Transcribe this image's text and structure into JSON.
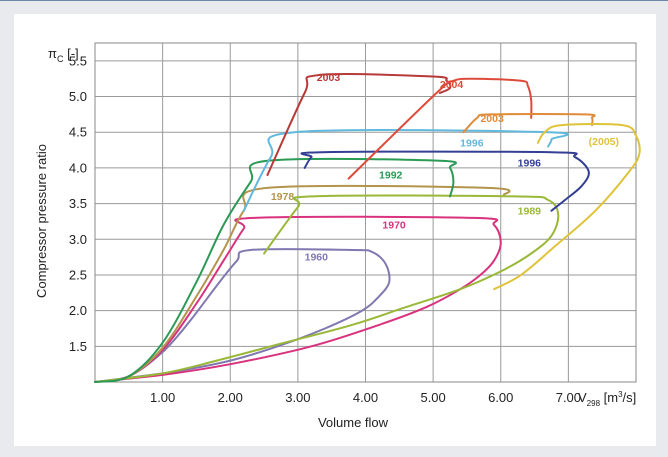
{
  "chart_data": {
    "type": "line",
    "xlabel": "Volume flow",
    "ylabel": "Compressor pressure ratio",
    "y_axis_symbol": {
      "main": "π",
      "sub": "C",
      "unit": " [-]"
    },
    "x_axis_symbol": {
      "main": "V",
      "sub": "298",
      "unit_pre": " [m",
      "sup": "3",
      "unit_post": "/s]"
    },
    "xlim": [
      0.0,
      8.0
    ],
    "ylim": [
      1.0,
      5.75
    ],
    "xticks": [
      1.0,
      2.0,
      3.0,
      4.0,
      5.0,
      6.0,
      7.0
    ],
    "xtick_labels": [
      "1.00",
      "2.00",
      "3.00",
      "4.00",
      "5.00",
      "6.00",
      "7.00"
    ],
    "yticks": [
      1.5,
      2.0,
      2.5,
      3.0,
      3.5,
      4.0,
      4.5,
      5.0,
      5.5
    ],
    "ytick_labels": [
      "1.5",
      "2.0",
      "2.5",
      "3.0",
      "3.5",
      "4.0",
      "4.5",
      "5.0",
      "5.5"
    ],
    "grid": true,
    "series": [
      {
        "name": "1960",
        "color": "#8079b0",
        "label_pos": [
          3.1,
          2.7
        ],
        "x": [
          0.0,
          0.5,
          1.0,
          1.4,
          1.8,
          2.1,
          2.3,
          3.8,
          4.1,
          4.3,
          4.35,
          4.2,
          3.95,
          3.4,
          2.7,
          2.0,
          1.2,
          0.5,
          0.0
        ],
        "y": [
          1.0,
          1.08,
          1.42,
          1.85,
          2.35,
          2.7,
          2.85,
          2.85,
          2.82,
          2.65,
          2.4,
          2.2,
          2.0,
          1.75,
          1.5,
          1.3,
          1.15,
          1.06,
          1.0
        ]
      },
      {
        "name": "1970",
        "color": "#d9327e",
        "label_pos": [
          4.25,
          3.15
        ],
        "x": [
          0.0,
          0.5,
          1.0,
          1.5,
          1.9,
          2.2,
          2.35,
          5.6,
          5.9,
          6.0,
          5.9,
          5.7,
          5.4,
          4.9,
          4.2,
          3.2,
          2.0,
          1.0,
          0.0
        ],
        "y": [
          1.0,
          1.08,
          1.45,
          2.1,
          2.7,
          3.15,
          3.3,
          3.3,
          3.2,
          2.95,
          2.7,
          2.5,
          2.3,
          2.05,
          1.8,
          1.5,
          1.25,
          1.1,
          1.0
        ]
      },
      {
        "name": "1978",
        "color": "#b3944d",
        "label_pos": [
          2.6,
          3.55
        ],
        "x": [
          0.0,
          0.5,
          1.0,
          1.5,
          1.9,
          2.2,
          2.55,
          5.8,
          6.05
        ],
        "y": [
          1.0,
          1.08,
          1.48,
          2.2,
          2.85,
          3.4,
          3.72,
          3.72,
          3.62
        ]
      },
      {
        "name": "1989",
        "color": "#9ab837",
        "label_pos": [
          6.25,
          3.35
        ],
        "x": [
          2.5,
          3.0,
          3.2,
          6.2,
          6.7,
          6.85,
          6.75,
          6.45,
          6.0,
          5.4,
          4.6,
          3.8,
          2.8,
          1.8,
          1.0,
          0.0
        ],
        "y": [
          2.8,
          3.45,
          3.6,
          3.6,
          3.55,
          3.35,
          3.05,
          2.8,
          2.55,
          2.3,
          2.05,
          1.8,
          1.55,
          1.3,
          1.12,
          1.0
        ]
      },
      {
        "name": "1992",
        "color": "#2a9a55",
        "label_pos": [
          4.2,
          3.85
        ],
        "x": [
          0.0,
          0.5,
          1.0,
          1.5,
          1.9,
          2.3,
          2.55,
          5.1,
          5.25,
          5.3,
          5.25
        ],
        "y": [
          1.0,
          1.08,
          1.55,
          2.4,
          3.2,
          3.8,
          4.1,
          4.1,
          4.0,
          3.8,
          3.6
        ]
      },
      {
        "name": "1996",
        "color": "#61b9dd",
        "label_pos": [
          5.4,
          4.3
        ],
        "x": [
          2.2,
          2.6,
          2.95,
          6.7,
          6.75,
          6.7
        ],
        "y": [
          3.4,
          4.15,
          4.5,
          4.5,
          4.4,
          4.3
        ]
      },
      {
        "name": "1996",
        "color": "#343f94",
        "label_pos": [
          6.25,
          4.02
        ],
        "x": [
          3.1,
          3.2,
          3.35,
          6.75,
          7.1,
          7.3,
          7.2,
          6.95,
          6.75
        ],
        "y": [
          4.0,
          4.15,
          4.22,
          4.22,
          4.15,
          3.95,
          3.75,
          3.55,
          3.4
        ]
      },
      {
        "name": "2003",
        "color": "#b53a38",
        "label_pos": [
          3.28,
          5.22
        ],
        "x": [
          2.55,
          3.1,
          3.3,
          5.0,
          5.2,
          5.25,
          5.1
        ],
        "y": [
          3.9,
          5.05,
          5.3,
          5.28,
          5.22,
          5.12,
          5.05
        ]
      },
      {
        "name": "2004",
        "color": "#de4a3a",
        "label_pos": [
          5.1,
          5.12
        ],
        "x": [
          3.75,
          5.05,
          5.3,
          5.6,
          6.3,
          6.4,
          6.45,
          6.45
        ],
        "y": [
          3.85,
          5.05,
          5.22,
          5.25,
          5.22,
          5.15,
          4.95,
          4.7
        ]
      },
      {
        "name": "2003",
        "color": "#e08b3a",
        "label_pos": [
          5.7,
          4.64
        ],
        "x": [
          5.45,
          5.65,
          5.85,
          7.25,
          7.35,
          7.35
        ],
        "y": [
          4.5,
          4.7,
          4.75,
          4.75,
          4.7,
          4.6
        ]
      },
      {
        "name": "(2005)",
        "color": "#dfc33a",
        "label_pos": [
          7.3,
          4.32
        ],
        "x": [
          6.55,
          6.65,
          6.9,
          7.8,
          8.0,
          8.05,
          7.9,
          7.4,
          6.8,
          6.3,
          5.9
        ],
        "y": [
          4.35,
          4.5,
          4.6,
          4.6,
          4.45,
          4.2,
          3.95,
          3.4,
          2.9,
          2.5,
          2.3
        ]
      }
    ]
  }
}
